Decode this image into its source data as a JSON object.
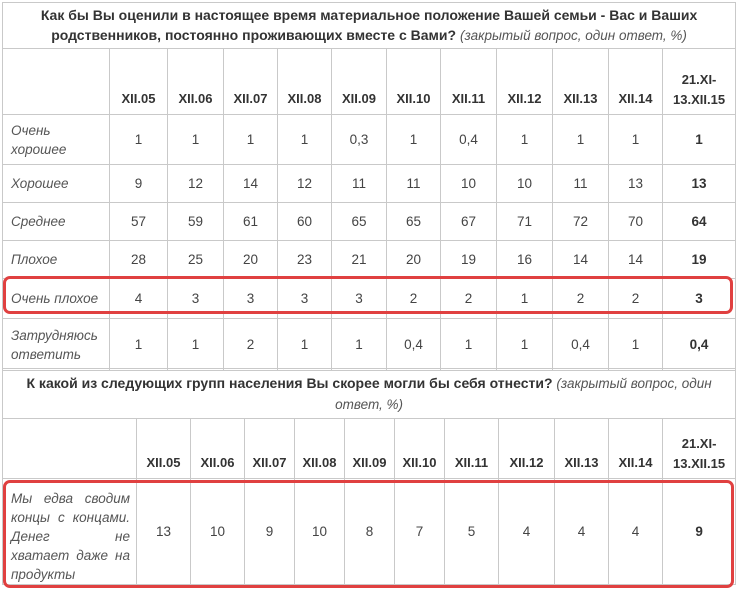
{
  "table1": {
    "title": "Как бы Вы оценили в настоящее время материальное положение Вашей семьи - Вас и Ваших родственников, постоянно проживающих вместе с Вами?",
    "note": "(закрытый вопрос, один ответ, %)",
    "columns": [
      "XII.05",
      "XII.06",
      "XII.07",
      "XII.08",
      "XII.09",
      "XII.10",
      "XII.11",
      "XII.12",
      "XII.13",
      "XII.14",
      "21.XI-13.XII.15"
    ],
    "rows": [
      {
        "label": "Очень хорошее",
        "values": [
          "1",
          "1",
          "1",
          "1",
          "0,3",
          "1",
          "0,4",
          "1",
          "1",
          "1",
          "1"
        ]
      },
      {
        "label": "Хорошее",
        "values": [
          "9",
          "12",
          "14",
          "12",
          "11",
          "11",
          "10",
          "10",
          "11",
          "13",
          "13"
        ]
      },
      {
        "label": "Среднее",
        "values": [
          "57",
          "59",
          "61",
          "60",
          "65",
          "65",
          "67",
          "71",
          "72",
          "70",
          "64"
        ]
      },
      {
        "label": "Плохое",
        "values": [
          "28",
          "25",
          "20",
          "23",
          "21",
          "20",
          "19",
          "16",
          "14",
          "14",
          "19"
        ]
      },
      {
        "label": "Очень плохое",
        "values": [
          "4",
          "3",
          "3",
          "3",
          "3",
          "2",
          "2",
          "1",
          "2",
          "2",
          "3"
        ]
      },
      {
        "label": "Затрудняюсь ответить",
        "values": [
          "1",
          "1",
          "2",
          "1",
          "1",
          "0,4",
          "1",
          "1",
          "0,4",
          "1",
          "0,4"
        ]
      }
    ]
  },
  "table2": {
    "title": "К какой из следующих групп населения Вы скорее могли бы себя отнести?",
    "note": "(закрытый вопрос, один ответ, %)",
    "columns": [
      "XII.05",
      "XII.06",
      "XII.07",
      "XII.08",
      "XII.09",
      "XII.10",
      "XII.11",
      "XII.12",
      "XII.13",
      "XII.14",
      "21.XI-13.XII.15"
    ],
    "rows": [
      {
        "label": "Мы едва сводим концы с концами. Денег не хватает даже на продукты",
        "values": [
          "13",
          "10",
          "9",
          "10",
          "8",
          "7",
          "5",
          "4",
          "4",
          "4",
          "9"
        ]
      }
    ]
  },
  "highlight_color": "#e04040"
}
